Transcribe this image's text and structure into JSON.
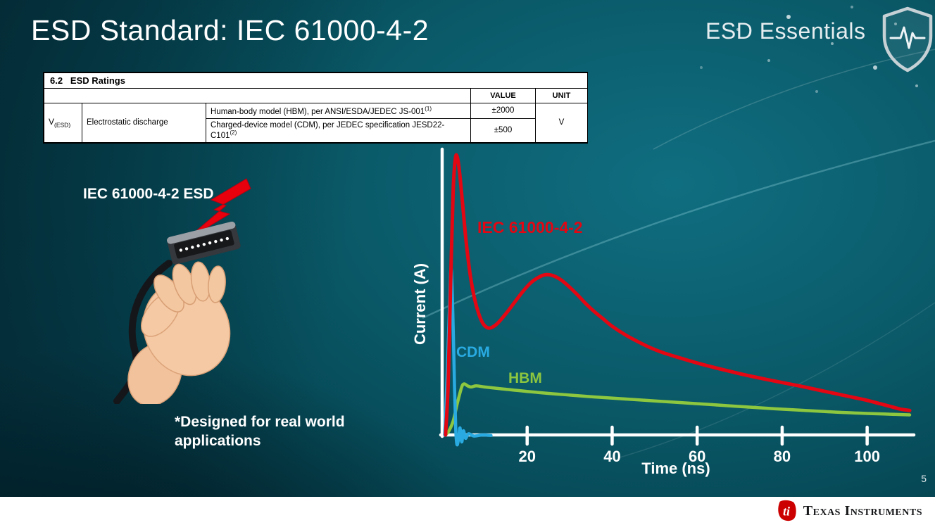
{
  "slide": {
    "title": "ESD Standard: IEC 61000-4-2",
    "brand": "ESD Essentials",
    "page_number": "5"
  },
  "footer": {
    "logo_text": "Texas Instruments"
  },
  "ratings_table": {
    "section_number": "6.2",
    "section_title": "ESD Ratings",
    "value_header": "VALUE",
    "unit_header": "UNIT",
    "symbol_main": "V",
    "symbol_sub": "(ESD)",
    "parameter": "Electrostatic discharge",
    "rows": [
      {
        "condition": "Human-body model (HBM), per ANSI/ESDA/JEDEC JS-001",
        "condition_sup": "(1)",
        "value": "±2000"
      },
      {
        "condition": "Charged-device model (CDM), per JEDEC specification JESD22-C101",
        "condition_sup": "(2)",
        "value": "±500"
      }
    ],
    "unit": "V"
  },
  "illustration": {
    "label": "IEC 61000-4-2 ESD",
    "note": "*Designed for real world applications"
  },
  "chart_data": {
    "type": "line",
    "title": "",
    "xlabel": "Time (ns)",
    "ylabel": "Current (A)",
    "xlim": [
      0,
      110
    ],
    "ylim": [
      0,
      1
    ],
    "x_ticks": [
      20,
      40,
      60,
      80,
      100
    ],
    "y_ticks": [],
    "grid": false,
    "y_unit": "relative (normalized to IEC 61000-4-2 peak = 1)",
    "legend_position": "labels on curves",
    "series": [
      {
        "name": "HBM",
        "color": "#8dc63f",
        "stroke_width": 4.5,
        "points": [
          [
            0.8,
            0
          ],
          [
            1.6,
            0.015
          ],
          [
            2.6,
            0.05
          ],
          [
            3.6,
            0.115
          ],
          [
            4.6,
            0.172
          ],
          [
            5.2,
            0.183
          ],
          [
            6.0,
            0.176
          ],
          [
            6.8,
            0.172
          ],
          [
            8,
            0.176
          ],
          [
            10,
            0.172
          ],
          [
            13,
            0.167
          ],
          [
            16,
            0.162
          ],
          [
            20,
            0.156
          ],
          [
            25,
            0.149
          ],
          [
            30,
            0.143
          ],
          [
            36,
            0.136
          ],
          [
            42,
            0.13
          ],
          [
            48,
            0.124
          ],
          [
            54,
            0.118
          ],
          [
            60,
            0.112
          ],
          [
            66,
            0.106
          ],
          [
            72,
            0.1
          ],
          [
            78,
            0.094
          ],
          [
            84,
            0.089
          ],
          [
            90,
            0.084
          ],
          [
            95,
            0.08
          ],
          [
            100,
            0.077
          ],
          [
            104,
            0.075
          ],
          [
            108,
            0.073
          ],
          [
            110,
            0.072
          ]
        ]
      },
      {
        "name": "CDM",
        "color": "#29abe2",
        "stroke_width": 4.5,
        "points": [
          [
            0.6,
            0
          ],
          [
            1.1,
            0.18
          ],
          [
            1.7,
            0.45
          ],
          [
            2.1,
            0.6
          ],
          [
            2.5,
            0.44
          ],
          [
            2.9,
            0.18
          ],
          [
            3.2,
            0.02
          ],
          [
            3.5,
            -0.035
          ],
          [
            3.9,
            -0.01
          ],
          [
            4.2,
            0.025
          ],
          [
            4.6,
            -0.025
          ],
          [
            5.0,
            0.015
          ],
          [
            5.5,
            -0.012
          ],
          [
            6.2,
            0.004
          ],
          [
            7.5,
            -0.004
          ],
          [
            9.5,
            0
          ],
          [
            11.5,
            -0.002
          ]
        ]
      },
      {
        "name": "IEC 61000-4-2",
        "color": "#e30613",
        "stroke_width": 5,
        "points": [
          [
            0.8,
            0
          ],
          [
            1.4,
            0.18
          ],
          [
            2.0,
            0.55
          ],
          [
            2.6,
            0.88
          ],
          [
            3.1,
            0.99
          ],
          [
            3.5,
            1.0
          ],
          [
            4.0,
            0.955
          ],
          [
            4.8,
            0.83
          ],
          [
            5.6,
            0.7
          ],
          [
            6.6,
            0.575
          ],
          [
            7.6,
            0.49
          ],
          [
            8.6,
            0.435
          ],
          [
            9.6,
            0.4
          ],
          [
            10.6,
            0.385
          ],
          [
            11.6,
            0.385
          ],
          [
            13,
            0.4
          ],
          [
            15,
            0.435
          ],
          [
            17,
            0.475
          ],
          [
            19,
            0.515
          ],
          [
            21,
            0.548
          ],
          [
            23,
            0.568
          ],
          [
            24.5,
            0.575
          ],
          [
            26,
            0.572
          ],
          [
            28,
            0.556
          ],
          [
            30,
            0.53
          ],
          [
            32,
            0.5
          ],
          [
            34,
            0.468
          ],
          [
            36,
            0.44
          ],
          [
            38,
            0.415
          ],
          [
            40,
            0.39
          ],
          [
            43,
            0.36
          ],
          [
            46,
            0.335
          ],
          [
            49,
            0.313
          ],
          [
            52,
            0.295
          ],
          [
            56,
            0.276
          ],
          [
            60,
            0.258
          ],
          [
            64,
            0.242
          ],
          [
            68,
            0.227
          ],
          [
            72,
            0.213
          ],
          [
            76,
            0.2
          ],
          [
            80,
            0.188
          ],
          [
            84,
            0.176
          ],
          [
            88,
            0.163
          ],
          [
            92,
            0.15
          ],
          [
            96,
            0.137
          ],
          [
            100,
            0.124
          ],
          [
            103,
            0.112
          ],
          [
            106,
            0.1
          ],
          [
            108,
            0.092
          ],
          [
            110,
            0.088
          ]
        ]
      }
    ]
  }
}
